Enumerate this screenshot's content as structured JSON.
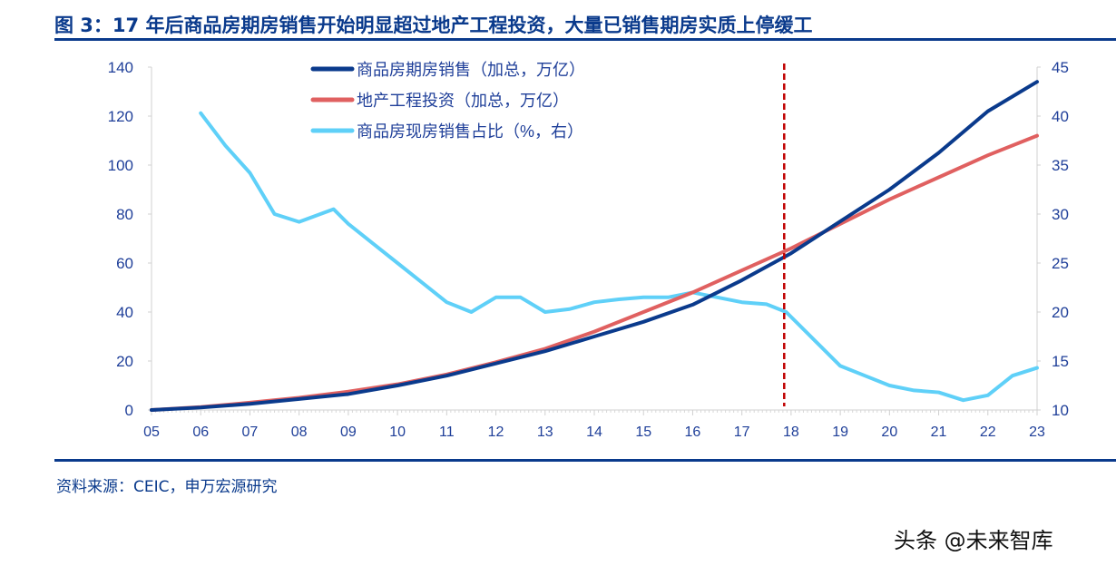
{
  "title": "图 3：17 年后商品房期房销售开始明显超过地产工程投资，大量已销售期房实质上停缓工",
  "source": "资料来源：CEIC，申万宏源研究",
  "watermark": "头条 @未来智库",
  "colors": {
    "s1": "#0a3a8c",
    "s2": "#e06060",
    "s3": "#5fd0f8",
    "axis": "#1f3f99",
    "marker": "#c00000"
  },
  "chart_data": {
    "type": "line",
    "title": "图 3：17 年后商品房期房销售开始明显超过地产工程投资，大量已销售期房实质上停缓工",
    "xlabel": "",
    "ylabel": "",
    "y2label": "",
    "xlim": [
      5,
      23
    ],
    "ylim": [
      0,
      140
    ],
    "y2lim": [
      10,
      45
    ],
    "xticks": [
      "05",
      "06",
      "07",
      "08",
      "09",
      "10",
      "11",
      "12",
      "13",
      "14",
      "15",
      "16",
      "17",
      "18",
      "19",
      "20",
      "21",
      "22",
      "23"
    ],
    "yticks": [
      "0",
      "20",
      "40",
      "60",
      "80",
      "100",
      "120",
      "140"
    ],
    "y2ticks": [
      "10",
      "15",
      "20",
      "25",
      "30",
      "35",
      "40",
      "45"
    ],
    "legend_position": "top-center",
    "vline_x": 17.86,
    "series": [
      {
        "name": "商品房期房销售（加总，万亿）",
        "axis": "left",
        "x": [
          5,
          6,
          7,
          8,
          9,
          10,
          11,
          12,
          13,
          14,
          15,
          16,
          17,
          18,
          19,
          20,
          21,
          22,
          23
        ],
        "values": [
          0,
          1,
          2.5,
          4.5,
          6.5,
          10,
          14,
          19,
          24,
          30,
          36,
          43,
          53,
          64,
          77,
          90,
          105,
          122,
          134
        ]
      },
      {
        "name": "地产工程投资（加总，万亿）",
        "axis": "left",
        "x": [
          5,
          6,
          7,
          8,
          9,
          10,
          11,
          12,
          13,
          14,
          15,
          16,
          17,
          18,
          19,
          20,
          21,
          22,
          23
        ],
        "values": [
          0,
          1.2,
          3,
          5,
          7.5,
          10.5,
          14.5,
          19.5,
          25,
          32,
          40,
          48,
          57,
          66,
          76,
          86,
          95,
          104,
          112
        ]
      },
      {
        "name": "商品房现房销售占比（%，右）",
        "axis": "right",
        "x": [
          6,
          6.5,
          7,
          7.5,
          8,
          8.7,
          9,
          9.5,
          10,
          10.5,
          11,
          11.5,
          12,
          12.5,
          13,
          13.5,
          14,
          14.5,
          15,
          15.5,
          16,
          16.5,
          17,
          17.5,
          17.9,
          18.5,
          19,
          19.5,
          20,
          20.5,
          21,
          21.5,
          22,
          22.5,
          23
        ],
        "values": [
          40.3,
          37,
          34.2,
          30,
          29.2,
          30.5,
          29,
          27,
          25,
          23,
          21,
          20,
          21.5,
          21.5,
          20,
          20.3,
          21,
          21.3,
          21.5,
          21.5,
          22,
          21.5,
          21,
          20.8,
          20,
          17,
          14.5,
          13.5,
          12.5,
          12,
          11.8,
          11,
          11.5,
          13.5,
          14.3
        ]
      }
    ]
  }
}
